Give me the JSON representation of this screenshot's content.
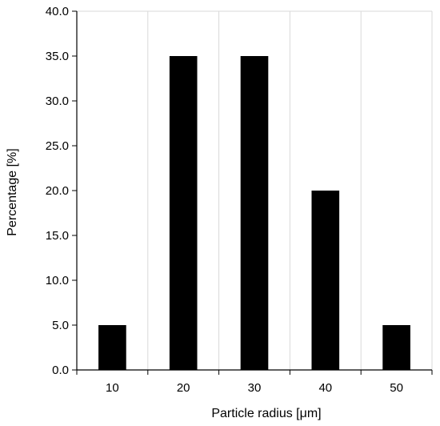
{
  "chart_data": {
    "type": "bar",
    "categories": [
      "10",
      "20",
      "30",
      "40",
      "50"
    ],
    "values": [
      5.0,
      35.0,
      35.0,
      20.0,
      5.0
    ],
    "title": "",
    "xlabel": "Particle radius [μm]",
    "ylabel": "Percentage [%]",
    "ylim": [
      0,
      40
    ],
    "yticks": [
      "0.0",
      "5.0",
      "10.0",
      "15.0",
      "20.0",
      "25.0",
      "30.0",
      "35.0",
      "40.0"
    ],
    "grid": "on",
    "legend": "none",
    "bar_color": "#000000",
    "grid_color": "#d9d9d9"
  }
}
